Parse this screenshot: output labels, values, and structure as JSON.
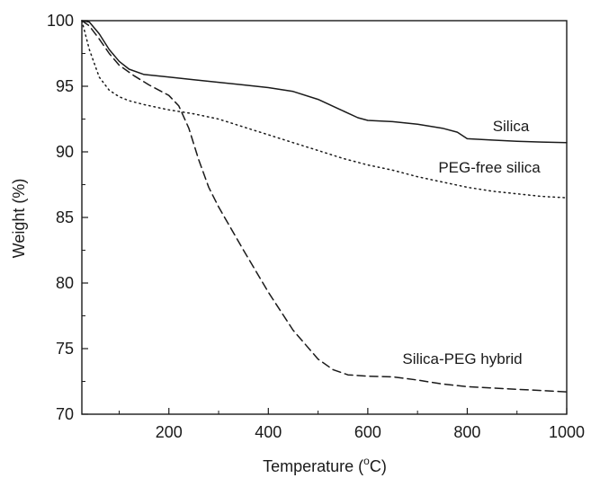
{
  "chart_data": {
    "type": "line",
    "title": "",
    "xlabel": "Temperature (°C)",
    "xlabel_parts": {
      "before": "Temperature (",
      "sup": "o",
      "after": "C)"
    },
    "ylabel": "Weight (%)",
    "xlim": [
      25,
      1000
    ],
    "ylim": [
      70,
      100
    ],
    "xticks": [
      200,
      400,
      600,
      800,
      1000
    ],
    "yticks": [
      70,
      75,
      80,
      85,
      90,
      95,
      100
    ],
    "grid": false,
    "legend": "none",
    "series": [
      {
        "name": "Silica",
        "style": "solid",
        "color": "#1a1a1a",
        "x": [
          25,
          40,
          60,
          80,
          100,
          120,
          150,
          200,
          250,
          300,
          350,
          400,
          450,
          500,
          540,
          580,
          600,
          650,
          700,
          750,
          780,
          800,
          850,
          900,
          950,
          1000
        ],
        "y": [
          100,
          99.9,
          99.0,
          97.8,
          96.9,
          96.3,
          95.9,
          95.7,
          95.5,
          95.3,
          95.1,
          94.9,
          94.6,
          94.0,
          93.3,
          92.6,
          92.4,
          92.3,
          92.1,
          91.8,
          91.5,
          91.0,
          90.9,
          90.8,
          90.75,
          90.7
        ]
      },
      {
        "name": "PEG-free silica",
        "style": "dotted",
        "color": "#1a1a1a",
        "x": [
          25,
          40,
          60,
          80,
          100,
          120,
          150,
          200,
          250,
          300,
          350,
          400,
          450,
          500,
          550,
          600,
          650,
          700,
          750,
          800,
          850,
          900,
          950,
          1000
        ],
        "y": [
          100,
          97.8,
          95.7,
          94.7,
          94.2,
          93.9,
          93.6,
          93.2,
          92.9,
          92.5,
          91.9,
          91.3,
          90.7,
          90.1,
          89.5,
          89.0,
          88.6,
          88.1,
          87.7,
          87.3,
          87.0,
          86.8,
          86.6,
          86.5
        ]
      },
      {
        "name": "Silica-PEG hybrid",
        "style": "dashed",
        "color": "#1a1a1a",
        "x": [
          25,
          40,
          60,
          80,
          100,
          130,
          160,
          200,
          220,
          240,
          260,
          280,
          300,
          350,
          400,
          450,
          500,
          530,
          560,
          600,
          650,
          700,
          750,
          800,
          850,
          900,
          950,
          1000
        ],
        "y": [
          100,
          99.6,
          98.6,
          97.5,
          96.6,
          95.8,
          95.1,
          94.3,
          93.5,
          91.8,
          89.4,
          87.3,
          85.8,
          82.5,
          79.3,
          76.4,
          74.2,
          73.4,
          73.0,
          72.9,
          72.85,
          72.6,
          72.3,
          72.1,
          72.0,
          71.9,
          71.8,
          71.7
        ]
      }
    ],
    "annotations": [
      {
        "text": "Silica",
        "series": 0
      },
      {
        "text": "PEG-free silica",
        "series": 1
      },
      {
        "text": "Silica-PEG hybrid",
        "series": 2
      }
    ]
  }
}
